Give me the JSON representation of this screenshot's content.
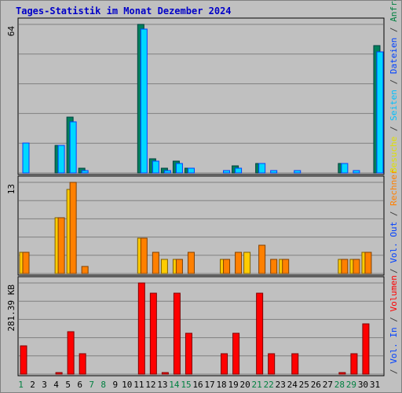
{
  "chart_data": {
    "type": "bar",
    "title": "Tages-Statistik im Monat Dezember 2024",
    "days": [
      {
        "label": "1",
        "weekend": true
      },
      {
        "label": "2",
        "weekend": false
      },
      {
        "label": "3",
        "weekend": false
      },
      {
        "label": "4",
        "weekend": false
      },
      {
        "label": "5",
        "weekend": false
      },
      {
        "label": "6",
        "weekend": false
      },
      {
        "label": "7",
        "weekend": true
      },
      {
        "label": "8",
        "weekend": true
      },
      {
        "label": "9",
        "weekend": false
      },
      {
        "label": "10",
        "weekend": false
      },
      {
        "label": "11",
        "weekend": false
      },
      {
        "label": "12",
        "weekend": false
      },
      {
        "label": "13",
        "weekend": false
      },
      {
        "label": "14",
        "weekend": true
      },
      {
        "label": "15",
        "weekend": true
      },
      {
        "label": "16",
        "weekend": false
      },
      {
        "label": "17",
        "weekend": false
      },
      {
        "label": "18",
        "weekend": false
      },
      {
        "label": "19",
        "weekend": false
      },
      {
        "label": "20",
        "weekend": false
      },
      {
        "label": "21",
        "weekend": true
      },
      {
        "label": "22",
        "weekend": true
      },
      {
        "label": "23",
        "weekend": false
      },
      {
        "label": "24",
        "weekend": false
      },
      {
        "label": "25",
        "weekend": false
      },
      {
        "label": "26",
        "weekend": false
      },
      {
        "label": "27",
        "weekend": false
      },
      {
        "label": "28",
        "weekend": true
      },
      {
        "label": "29",
        "weekend": true
      },
      {
        "label": "30",
        "weekend": false
      },
      {
        "label": "31",
        "weekend": false
      }
    ],
    "panels": [
      {
        "max": 64,
        "max_label": "64",
        "grid_lines": 5,
        "legend": [
          {
            "text": "Anfragen",
            "color": "#008040"
          },
          {
            "text": " / ",
            "color": "#404040"
          },
          {
            "text": "Dateien",
            "color": "#0040ff"
          },
          {
            "text": " / ",
            "color": "#404040"
          },
          {
            "text": "Seiten",
            "color": "#00c0ff"
          },
          {
            "text": " / ",
            "color": "#404040"
          },
          {
            "text": "Besuche",
            "color": "#e0e000"
          }
        ],
        "series": [
          {
            "colors": [
              "#00805c",
              "#004040"
            ],
            "values": [
              0,
              0,
              0,
              12,
              24,
              2,
              0,
              0,
              0,
              0,
              64,
              6,
              2,
              5,
              2,
              0,
              0,
              0,
              3,
              0,
              4,
              0,
              0,
              0,
              0,
              0,
              0,
              4,
              0,
              0,
              55
            ]
          },
          {
            "colors": [
              "#00d8ff",
              "#0040ff"
            ],
            "values": [
              13,
              0,
              0,
              12,
              22,
              1,
              0,
              0,
              0,
              0,
              62,
              5,
              1,
              4,
              2,
              0,
              0,
              1,
              2,
              0,
              4,
              1,
              0,
              1,
              0,
              0,
              0,
              4,
              1,
              0,
              52
            ]
          }
        ]
      },
      {
        "max": 13,
        "max_label": "13",
        "grid_lines": 5,
        "legend": [
          {
            "text": "Rechner",
            "color": "#ff8000"
          },
          {
            "text": " / ",
            "color": "#404040"
          },
          {
            "text": "Vol. Out",
            "color": "#0040ff"
          },
          {
            "text": " / ",
            "color": "#404040"
          }
        ],
        "series": [
          {
            "colors": [
              "#ffcc00",
              "#806000"
            ],
            "values": [
              3,
              0,
              0,
              8,
              12,
              0,
              0,
              0,
              0,
              0,
              5,
              0,
              2,
              2,
              0,
              0,
              0,
              2,
              0,
              3,
              0,
              0,
              2,
              0,
              0,
              0,
              0,
              2,
              2,
              3,
              0
            ]
          },
          {
            "colors": [
              "#ff8000",
              "#804000"
            ],
            "values": [
              3,
              0,
              0,
              8,
              13,
              1,
              0,
              0,
              0,
              0,
              5,
              3,
              0,
              2,
              3,
              0,
              0,
              2,
              3,
              0,
              4,
              2,
              2,
              0,
              0,
              0,
              0,
              2,
              2,
              3,
              0
            ]
          }
        ]
      },
      {
        "max": 281.39,
        "max_label": "281.39 KB",
        "grid_lines": 5,
        "legend": [
          {
            "text": "Volumen",
            "color": "#ff0000"
          },
          {
            "text": " / ",
            "color": "#404040"
          },
          {
            "text": "Vol. In",
            "color": "#0040ff"
          },
          {
            "text": " / ",
            "color": "#404040"
          }
        ],
        "series": [
          {
            "colors": [
              "#ff0000",
              "#800000"
            ],
            "values": [
              88,
              0,
              0,
              4,
              130,
              64,
              0,
              0,
              0,
              0,
              281,
              250,
              4,
              250,
              126,
              0,
              0,
              64,
              126,
              0,
              250,
              64,
              0,
              64,
              0,
              0,
              0,
              4,
              64,
              155,
              0
            ]
          }
        ]
      }
    ]
  }
}
